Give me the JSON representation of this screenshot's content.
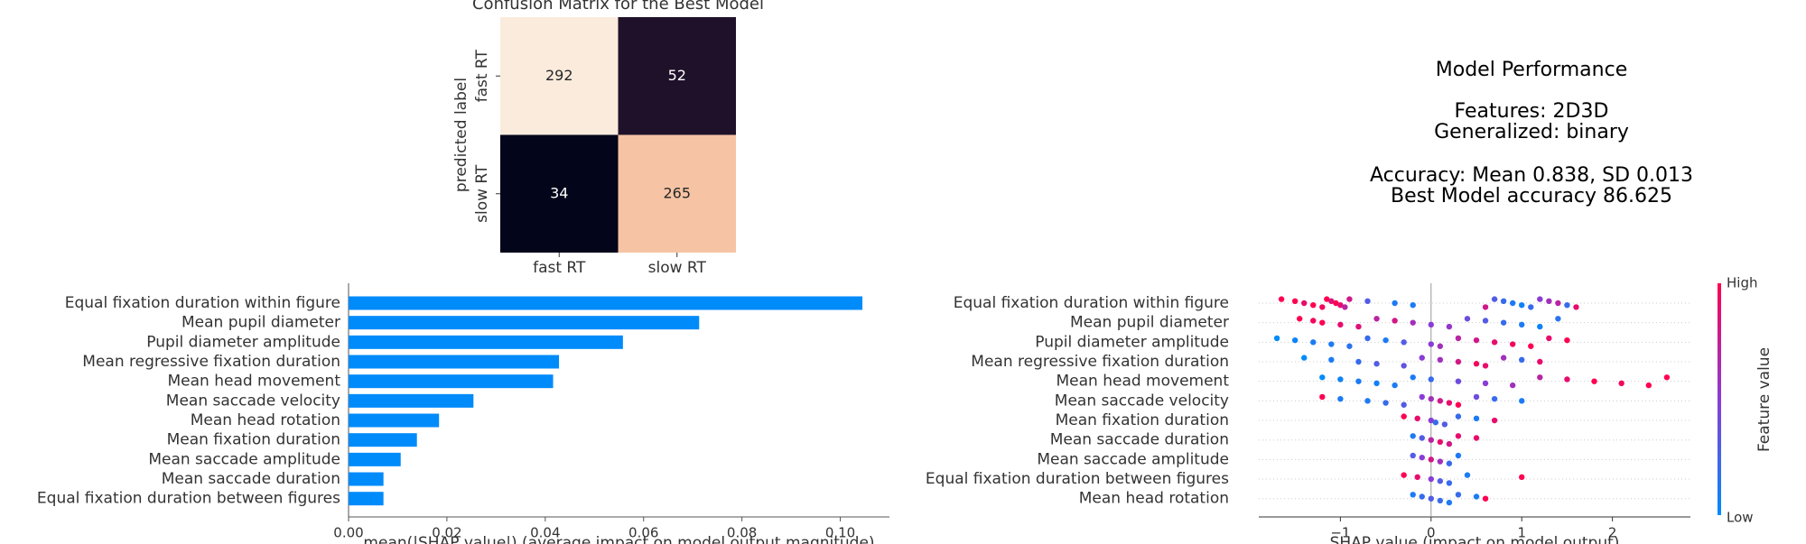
{
  "chart_data": [
    {
      "type": "heatmap",
      "title": "Confusion Matrix for the Best Model",
      "ylabel": "predicted label",
      "x_categories": [
        "fast RT",
        "slow RT"
      ],
      "y_categories": [
        "fast RT",
        "slow RT"
      ],
      "values": [
        [
          292,
          52
        ],
        [
          34,
          265
        ]
      ],
      "colors": [
        [
          "#faebdd",
          "#1f1129"
        ],
        [
          "#03051a",
          "#f6c4a4"
        ]
      ]
    },
    {
      "type": "text",
      "title": "Model Performance",
      "lines": [
        "Features: 2D3D",
        "Generalized: binary",
        "Accuracy: Mean 0.838, SD 0.013",
        "Best Model accuracy 86.625"
      ]
    },
    {
      "type": "bar",
      "orientation": "horizontal",
      "color": "#008bfb",
      "categories": [
        "Equal fixation duration within figure",
        "Mean pupil diameter",
        "Pupil diameter amplitude",
        "Mean regressive fixation duration",
        "Mean head movement",
        "Mean saccade velocity",
        "Mean head rotation",
        "Mean fixation duration",
        "Mean saccade amplitude",
        "Mean saccade duration",
        "Equal fixation duration between figures"
      ],
      "values": [
        0.1045,
        0.0713,
        0.0558,
        0.0428,
        0.0416,
        0.0254,
        0.0184,
        0.0139,
        0.0106,
        0.0071,
        0.0071
      ],
      "xlim": [
        0,
        0.11
      ],
      "xticks": [
        {
          "value": 0,
          "label": "0.00"
        },
        0.02,
        0.04,
        0.06,
        0.08,
        {
          "value": 0.1,
          "label": "0.10"
        }
      ],
      "xlabel": "mean(|SHAP value|) (average impact on model output magnitude)"
    },
    {
      "type": "beeswarm",
      "xlim": [
        -1.9,
        2.86
      ],
      "xticks": [
        {
          "value": -1,
          "label": "−1"
        },
        0,
        1,
        2
      ],
      "xlabel": "SHAP value (impact on model output)",
      "colorbar": {
        "label": "Feature value",
        "high": "High",
        "low": "Low",
        "colors": [
          "#008bfb",
          "#8a3cd6",
          "#ff0051"
        ]
      },
      "series": [
        {
          "name": "Equal fixation duration within figure",
          "values": [
            -1.65,
            -1.5,
            -1.4,
            -1.3,
            -1.2,
            -1.15,
            -1.1,
            -1.05,
            -1.0,
            -0.95,
            -0.9,
            -0.7,
            -0.4,
            -0.2,
            0.6,
            0.7,
            0.8,
            0.9,
            1.0,
            1.1,
            1.2,
            1.3,
            1.4,
            1.5,
            1.6
          ],
          "feature_values": [
            1,
            1,
            0.9,
            1,
            0.95,
            1,
            0.85,
            1,
            0.9,
            0.7,
            0.8,
            0.3,
            0.1,
            0.1,
            0.8,
            0.3,
            0.2,
            0.1,
            0.05,
            0.2,
            0.5,
            0.6,
            0.7,
            0.2,
            0.9
          ]
        },
        {
          "name": "Mean pupil diameter",
          "values": [
            -1.45,
            -1.3,
            -1.2,
            -1.0,
            -0.8,
            -0.6,
            -0.4,
            -0.2,
            0,
            0.2,
            0.4,
            0.6,
            0.8,
            1.0,
            1.2,
            1.4
          ],
          "feature_values": [
            1,
            0.95,
            1,
            0.9,
            0.85,
            0.7,
            0.8,
            0.6,
            0.5,
            0.55,
            0.4,
            0.3,
            0.2,
            0.1,
            0.05,
            0.15
          ]
        },
        {
          "name": "Pupil diameter amplitude",
          "values": [
            -1.7,
            -1.5,
            -1.3,
            -1.1,
            -0.9,
            -0.7,
            -0.5,
            -0.3,
            0,
            0.1,
            0.3,
            0.5,
            0.7,
            0.9,
            1.1,
            1.3,
            1.5
          ],
          "feature_values": [
            0,
            0.05,
            0.1,
            0.1,
            0.15,
            0.2,
            0.1,
            0.3,
            0.5,
            0.6,
            0.7,
            0.8,
            0.9,
            0.95,
            1,
            0.9,
            1
          ]
        },
        {
          "name": "Mean regressive fixation duration",
          "values": [
            -1.4,
            -1.1,
            -0.8,
            -0.6,
            -0.3,
            -0.1,
            0.1,
            0.3,
            0.5,
            0.6,
            0.8,
            1.0,
            1.2
          ],
          "feature_values": [
            0,
            0.1,
            0.2,
            0.3,
            0.35,
            0.5,
            0.6,
            0.8,
            0.95,
            0.9,
            0.6,
            0.2,
            0.9
          ]
        },
        {
          "name": "Mean head movement",
          "values": [
            -1.2,
            -1.0,
            -0.8,
            -0.6,
            -0.4,
            -0.2,
            0,
            0.3,
            0.6,
            0.9,
            1.2,
            1.5,
            1.8,
            2.1,
            2.4,
            2.6
          ],
          "feature_values": [
            0,
            0.05,
            0.1,
            0.05,
            0.1,
            0.1,
            0.2,
            0.4,
            0.5,
            0.6,
            0.7,
            0.9,
            1,
            0.95,
            1,
            1
          ]
        },
        {
          "name": "Mean saccade velocity",
          "values": [
            -1.2,
            -1.0,
            -0.7,
            -0.5,
            -0.3,
            -0.1,
            0,
            0.1,
            0.2,
            0.3,
            0.5,
            0.7,
            1.0
          ],
          "feature_values": [
            1,
            0.1,
            0.1,
            0.2,
            0.3,
            0.5,
            0.6,
            0.8,
            0.9,
            1,
            0.4,
            0.2,
            0.1
          ]
        },
        {
          "name": "Mean fixation duration",
          "values": [
            -0.3,
            -0.15,
            0,
            0.05,
            0.15,
            0.3,
            0.5,
            0.7
          ],
          "feature_values": [
            1,
            0.9,
            0.5,
            0.2,
            0.3,
            0.2,
            0.1,
            0.9
          ]
        },
        {
          "name": "Mean saccade duration",
          "values": [
            -0.2,
            -0.1,
            0,
            0.1,
            0.2,
            0.3,
            0.5
          ],
          "feature_values": [
            0.1,
            0.3,
            0.7,
            0.9,
            0.8,
            0.9,
            0.9
          ]
        },
        {
          "name": "Mean saccade amplitude",
          "values": [
            -0.2,
            -0.1,
            0,
            0.1,
            0.2,
            0.3
          ],
          "feature_values": [
            0.3,
            0.5,
            0.8,
            0.6,
            0.2,
            0.1
          ]
        },
        {
          "name": "Equal fixation duration between figures",
          "values": [
            -0.3,
            -0.15,
            0,
            0.1,
            0.2,
            0.4,
            1.0
          ],
          "feature_values": [
            1,
            0.9,
            0.5,
            0.3,
            0.2,
            0.1,
            1
          ]
        },
        {
          "name": "Mean head rotation",
          "values": [
            -0.2,
            -0.1,
            0,
            0.1,
            0.2,
            0.3,
            0.5,
            0.6
          ],
          "feature_values": [
            0.1,
            0.2,
            0.3,
            0.2,
            0.1,
            0.2,
            0.1,
            1
          ]
        }
      ]
    }
  ]
}
